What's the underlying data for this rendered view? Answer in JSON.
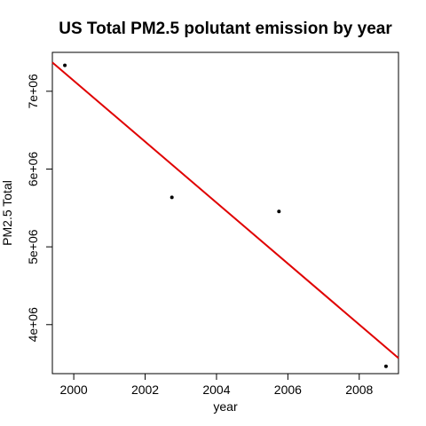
{
  "chart_data": {
    "type": "scatter",
    "title": "US Total PM2.5 polutant emission by year",
    "xlabel": "year",
    "ylabel": "PM2.5 Total",
    "xlim": [
      1999.4,
      2009.1
    ],
    "ylim": [
      3370000,
      7500000
    ],
    "x_ticks": [
      2000,
      2002,
      2004,
      2006,
      2008
    ],
    "x_tick_labels": [
      "2000",
      "2002",
      "2004",
      "2006",
      "2008"
    ],
    "y_ticks": [
      4000000,
      5000000,
      6000000,
      7000000
    ],
    "y_tick_labels": [
      "4e+06",
      "5e+06",
      "6e+06",
      "7e+06"
    ],
    "grid": false,
    "points": [
      {
        "x": 1999,
        "y": 7332967
      },
      {
        "x": 2002,
        "y": 5635780
      },
      {
        "x": 2005,
        "y": 5454703
      },
      {
        "x": 2008,
        "y": 3464206
      }
    ],
    "regression_line": {
      "color": "#e00000",
      "x": [
        1999.4,
        2009.1
      ],
      "y": [
        7370000,
        3570000
      ]
    },
    "point_color": "#000000"
  }
}
